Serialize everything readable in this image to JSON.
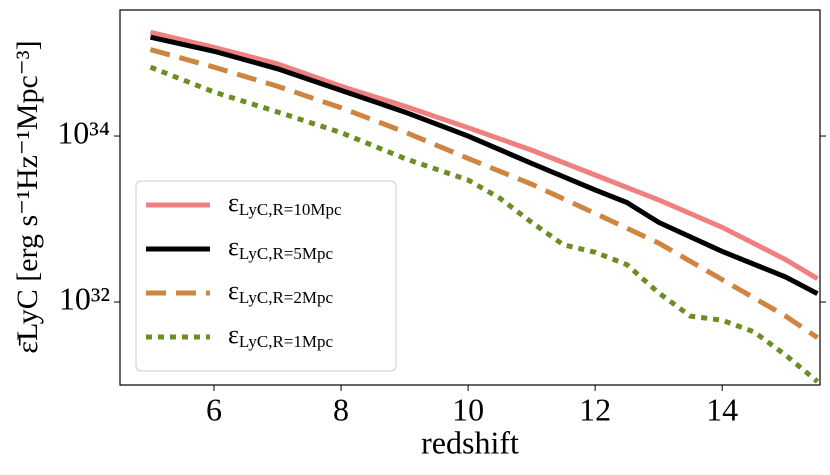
{
  "chart_data": {
    "type": "line",
    "xlabel": "redshift",
    "ylabel": "ε̄LyC [erg s⁻¹Hz⁻¹Mpc⁻³]",
    "xlim": [
      4.52,
      15.54
    ],
    "xticks": [
      6,
      8,
      10,
      12,
      14
    ],
    "ylim": [
      1e+31,
      3.3e+35
    ],
    "log_y": true,
    "yticks": [
      {
        "value": 1e+32,
        "label": "10³²"
      },
      {
        "value": 1e+34,
        "label": "10³⁴"
      }
    ],
    "legend": "lower left",
    "series": [
      {
        "name": "εLyC,R=10Mpc",
        "color": "#f08080",
        "style": "solid",
        "x": [
          5,
          6,
          7,
          8,
          9,
          10,
          11,
          12,
          13,
          14,
          15,
          15.5
        ],
        "values": [
          1.78e+35,
          1.17e+35,
          7.41e+34,
          3.98e+34,
          2.29e+34,
          1.26e+34,
          6.76e+33,
          3.39e+33,
          1.7e+33,
          7.94e+32,
          3.24e+32,
          1.91e+32
        ]
      },
      {
        "name": "εLyC,R=5Mpc",
        "color": "#000000",
        "style": "solid",
        "x": [
          5,
          6,
          7,
          8,
          9,
          10,
          11,
          12,
          12.5,
          13,
          14,
          15,
          15.5
        ],
        "values": [
          1.55e+35,
          1.05e+35,
          6.46e+34,
          3.55e+34,
          1.95e+34,
          1e+34,
          4.68e+33,
          2.24e+33,
          1.58e+33,
          9.12e+32,
          4.07e+32,
          2e+32,
          1.26e+32
        ]
      },
      {
        "name": "εLyC,R=2Mpc",
        "color": "#cd853f",
        "style": "dashed",
        "x": [
          5,
          6,
          7,
          8,
          9,
          10,
          11,
          12,
          13,
          14,
          15,
          15.5
        ],
        "values": [
          1.1e+35,
          6.76e+34,
          3.98e+34,
          2.19e+34,
          1.12e+34,
          5.37e+33,
          2.63e+33,
          1.17e+33,
          5.13e+32,
          1.86e+32,
          6.76e+31,
          3.72e+31
        ]
      },
      {
        "name": "εLyC,R=1Mpc",
        "color": "#6b8e23",
        "style": "dotted",
        "x": [
          5,
          6,
          7,
          8,
          9,
          10,
          10.5,
          11,
          11.5,
          12,
          12.5,
          13,
          13.5,
          14,
          14.5,
          15,
          15.5
        ],
        "values": [
          6.76e+34,
          3.39e+34,
          1.95e+34,
          1.1e+34,
          5.37e+33,
          2.95e+33,
          1.78e+33,
          9.12e+32,
          4.9e+32,
          3.98e+32,
          2.82e+32,
          1.29e+32,
          6.76e+31,
          6.03e+31,
          4.37e+31,
          2.29e+31,
          1.1e+31
        ]
      }
    ]
  }
}
